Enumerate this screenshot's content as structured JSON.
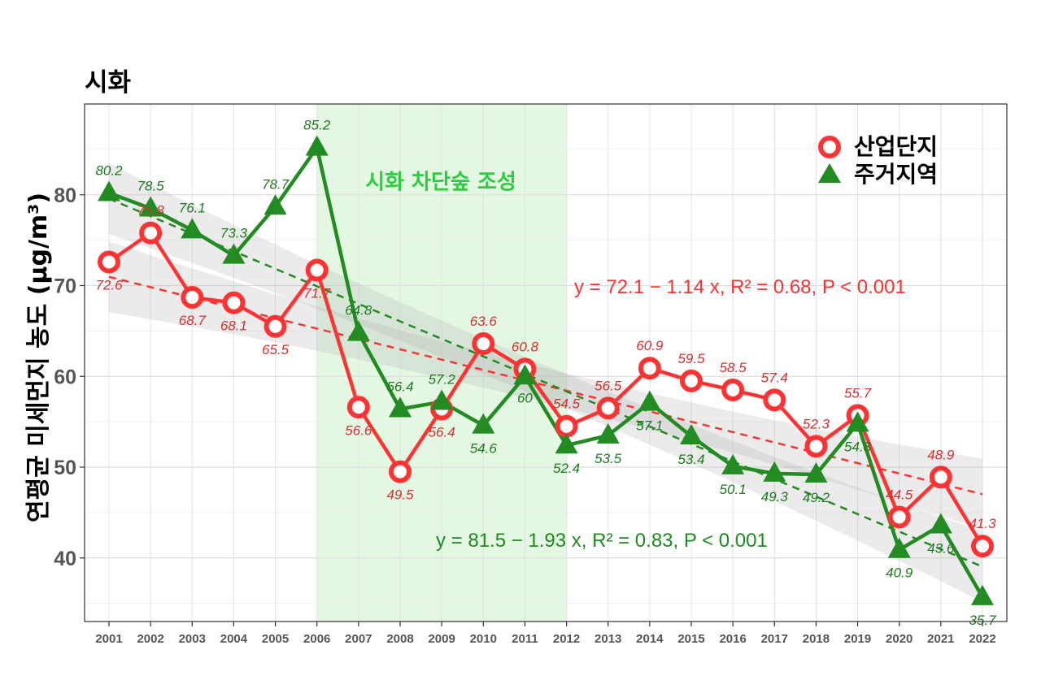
{
  "title": "시화",
  "ylabel": "연평균 미세먼지 농도 (μg/m³)",
  "band_label": "시화 차단숲 조성",
  "legend": [
    {
      "label": "산업단지",
      "color": "#ff3333",
      "marker": "circle"
    },
    {
      "label": "주거지역",
      "color": "#228b22",
      "marker": "triangle"
    }
  ],
  "equations": {
    "industrial": "y = 72.1 − 1.14 x, R² = 0.68, P < 0.001",
    "residential": "y = 81.5 − 1.93 x, R² = 0.83, P < 0.001"
  },
  "chart_data": {
    "type": "line",
    "x": [
      2001,
      2002,
      2003,
      2004,
      2005,
      2006,
      2007,
      2008,
      2009,
      2010,
      2011,
      2012,
      2013,
      2014,
      2015,
      2016,
      2017,
      2018,
      2019,
      2020,
      2021,
      2022
    ],
    "series": [
      {
        "name": "산업단지",
        "color": "#ff3333",
        "marker": "circle",
        "values": [
          72.6,
          75.8,
          68.7,
          68.1,
          65.5,
          71.7,
          56.6,
          49.5,
          56.4,
          63.6,
          60.8,
          54.5,
          56.5,
          60.9,
          59.5,
          58.5,
          57.4,
          52.3,
          55.7,
          44.5,
          48.9,
          41.3
        ],
        "labels": [
          "72.6",
          "75.8",
          "68.7",
          "68.1",
          "65.5",
          "71.7",
          "56.6",
          "49.5",
          "56.4",
          "63.6",
          "60.8",
          "54.5",
          "56.5",
          "60.9",
          "59.5",
          "58.5",
          "57.4",
          "52.3",
          "55.7",
          "44.5",
          "48.9",
          "41.3"
        ],
        "trend": {
          "intercept": 72.1,
          "slope": -1.14
        }
      },
      {
        "name": "주거지역",
        "color": "#228b22",
        "marker": "triangle",
        "values": [
          80.2,
          78.5,
          76.1,
          73.3,
          78.7,
          85.2,
          64.8,
          56.4,
          57.2,
          54.6,
          60.0,
          52.4,
          53.5,
          57.1,
          53.4,
          50.1,
          49.3,
          49.2,
          54.8,
          40.9,
          43.6,
          35.7
        ],
        "labels": [
          "80.2",
          "78.5",
          "76.1",
          "73.3",
          "78.7",
          "85.2",
          "64.8",
          "56.4",
          "57.2",
          "54.6",
          "60",
          "52.4",
          "53.5",
          "57.1",
          "53.4",
          "50.1",
          "49.3",
          "49.2",
          "54.8",
          "40.9",
          "43.6",
          "35.7"
        ],
        "trend": {
          "intercept": 81.5,
          "slope": -1.93
        }
      }
    ],
    "highlight_range": [
      2006,
      2012
    ],
    "yticks": [
      40,
      50,
      60,
      70,
      80
    ],
    "ylim": [
      33,
      90
    ],
    "grid": true,
    "legend_position": "top-right"
  }
}
